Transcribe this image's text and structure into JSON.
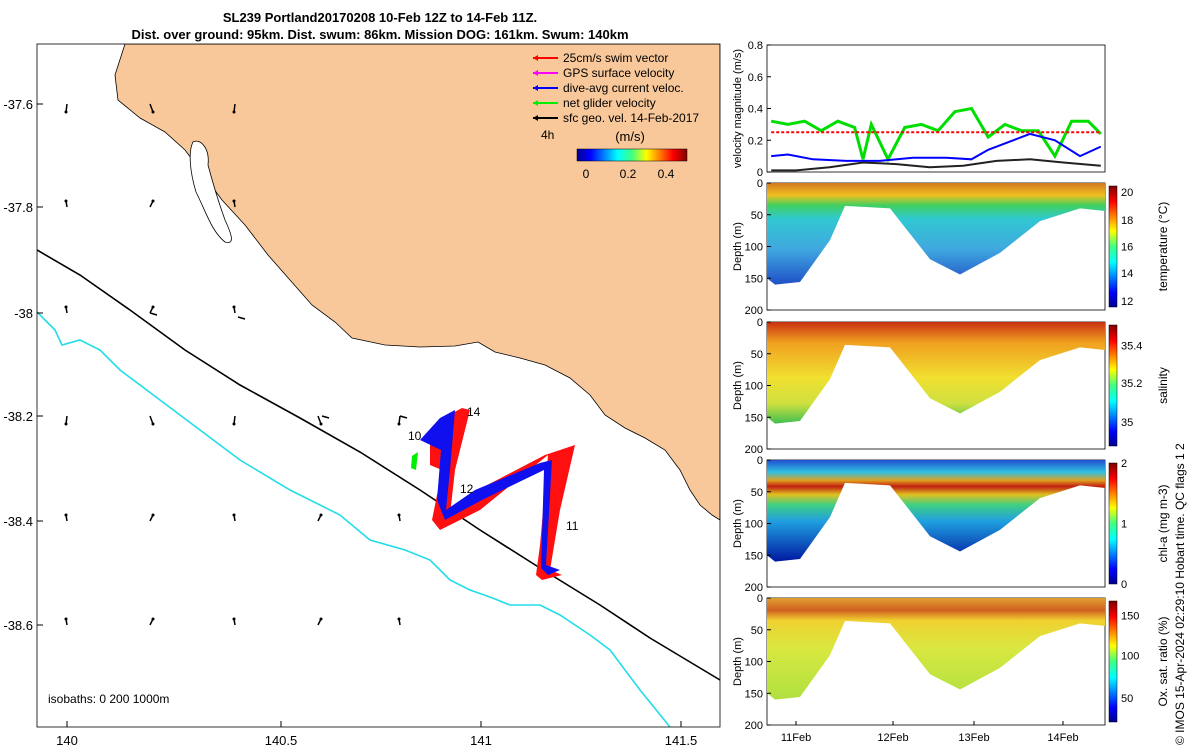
{
  "title_line1": "SL239 Portland20170208 10-Feb 12Z to 14-Feb 11Z.",
  "title_line2": "Dist. over ground: 95km. Dist. swum: 86km. Mission DOG: 161km. Swum: 140km",
  "map": {
    "x_ticks": [
      "140",
      "140.5",
      "141",
      "141.5"
    ],
    "y_ticks": [
      "-37.6",
      "-37.8",
      "-38",
      "-38.2",
      "-38.4",
      "-38.6"
    ],
    "legend": [
      {
        "label": "25cm/s swim vector",
        "color": "#ff0000"
      },
      {
        "label": "GPS surface velocity",
        "color": "#ff00ff"
      },
      {
        "label": "dive-avg current veloc.",
        "color": "#0000ff"
      },
      {
        "label": "net glider velocity",
        "color": "#00ee00"
      },
      {
        "label": "sfc geo. vel. 14-Feb-2017",
        "color": "#000000"
      }
    ],
    "colorbar_label": "(m/s)",
    "colorbar_ticks": [
      "0",
      "0.2",
      "0.4"
    ],
    "time_label": "4h",
    "day_labels": [
      "10",
      "11",
      "12",
      "13",
      "14"
    ],
    "isobaths_label": "isobaths: 0   200  1000m",
    "land_color": "#f8c89a",
    "shelf_color": "#000000",
    "deep_isobath_color": "#22dde8"
  },
  "chart_data": [
    {
      "type": "line",
      "ylabel": "velocity magnitude (m/s)",
      "ylim": [
        0,
        0.8
      ],
      "y_ticks": [
        "0",
        "0.2",
        "0.4",
        "0.6",
        "0.8"
      ],
      "x_ticks": [
        "11Feb",
        "12Feb",
        "13Feb",
        "14Feb"
      ],
      "series": [
        {
          "color": "#00dd00",
          "x": [
            10.5,
            10.7,
            10.9,
            11.1,
            11.3,
            11.5,
            11.6,
            11.7,
            11.9,
            12.1,
            12.3,
            12.5,
            12.7,
            12.9,
            13.1,
            13.3,
            13.5,
            13.7,
            13.9,
            14.1,
            14.3,
            14.45
          ],
          "y": [
            0.32,
            0.3,
            0.32,
            0.26,
            0.32,
            0.28,
            0.08,
            0.3,
            0.08,
            0.28,
            0.3,
            0.26,
            0.38,
            0.4,
            0.22,
            0.3,
            0.26,
            0.26,
            0.1,
            0.32,
            0.32,
            0.24
          ]
        },
        {
          "color": "#ff0000",
          "x": [
            10.5,
            14.45
          ],
          "y": [
            0.25,
            0.25
          ]
        },
        {
          "color": "#0000ff",
          "x": [
            10.5,
            10.7,
            11.0,
            11.4,
            11.8,
            12.2,
            12.6,
            12.9,
            13.1,
            13.4,
            13.6,
            13.9,
            14.2,
            14.45
          ],
          "y": [
            0.1,
            0.11,
            0.08,
            0.07,
            0.07,
            0.09,
            0.09,
            0.08,
            0.14,
            0.2,
            0.24,
            0.2,
            0.1,
            0.16
          ]
        },
        {
          "color": "#222222",
          "x": [
            10.5,
            10.8,
            11.2,
            11.6,
            12.0,
            12.4,
            12.8,
            13.2,
            13.6,
            14.0,
            14.45
          ],
          "y": [
            0.01,
            0.01,
            0.03,
            0.06,
            0.05,
            0.03,
            0.04,
            0.07,
            0.08,
            0.06,
            0.04
          ]
        }
      ]
    },
    {
      "type": "heatmap",
      "ylabel": "Depth (m)",
      "clabel": "temperature (°C)",
      "ylim": [
        0,
        200
      ],
      "y_ticks": [
        "0",
        "50",
        "100",
        "150",
        "200"
      ],
      "c_ticks": [
        "12",
        "14",
        "16",
        "18",
        "20"
      ],
      "x_ticks": [
        "11Feb",
        "12Feb",
        "13Feb",
        "14Feb"
      ]
    },
    {
      "type": "heatmap",
      "ylabel": "Depth (m)",
      "clabel": "salinity",
      "ylim": [
        0,
        200
      ],
      "y_ticks": [
        "0",
        "50",
        "100",
        "150",
        "200"
      ],
      "c_ticks": [
        "35",
        "35.2",
        "35.4"
      ],
      "x_ticks": [
        "11Feb",
        "12Feb",
        "13Feb",
        "14Feb"
      ]
    },
    {
      "type": "heatmap",
      "ylabel": "Depth (m)",
      "clabel": "chl-a (mg m-3)",
      "ylim": [
        0,
        200
      ],
      "y_ticks": [
        "0",
        "50",
        "100",
        "150",
        "200"
      ],
      "c_ticks": [
        "0",
        "1",
        "2"
      ],
      "x_ticks": [
        "11Feb",
        "12Feb",
        "13Feb",
        "14Feb"
      ]
    },
    {
      "type": "heatmap",
      "ylabel": "Depth (m)",
      "clabel": "Ox. sat. ratio (%)",
      "ylim": [
        0,
        200
      ],
      "y_ticks": [
        "0",
        "50",
        "100",
        "150",
        "200"
      ],
      "c_ticks": [
        "50",
        "100",
        "150"
      ],
      "x_ticks": [
        "11Feb",
        "12Feb",
        "13Feb",
        "14Feb"
      ]
    }
  ],
  "side_note": "© IMOS 15-Apr-2024 02:29:10 Hobart time. QC flags 1  2"
}
